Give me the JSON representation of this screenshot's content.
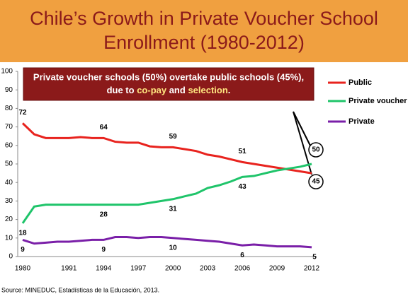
{
  "chart_data": {
    "type": "line",
    "title": [
      "Chile’s Growth in Private Voucher School",
      "Enrollment (1980-2012)"
    ],
    "annotation": {
      "line1": "Private voucher schools (50%) overtake public schools (45%),",
      "line2": [
        "due to ",
        "co-pay",
        " and ",
        "selection",
        "."
      ]
    },
    "source": "Source: MINEDUC,  Estadísticas de la Educación, 2013.",
    "categories": [
      "1980",
      null,
      null,
      null,
      "1991",
      null,
      null,
      "1994",
      null,
      null,
      "1997",
      null,
      null,
      "2000",
      null,
      null,
      "2003",
      null,
      null,
      "2006",
      null,
      null,
      "2009",
      null,
      null,
      "2012"
    ],
    "series": [
      {
        "name": "Public",
        "color": "#e8231e",
        "values": [
          72,
          66,
          64,
          64,
          64,
          64.5,
          64,
          64,
          62,
          61.5,
          61.5,
          59.5,
          59,
          59,
          58,
          57,
          55,
          54,
          52.5,
          51,
          50,
          49,
          48,
          47,
          46,
          45
        ]
      },
      {
        "name": "Private voucher",
        "color": "#1fc46a",
        "values": [
          18,
          27,
          28,
          28,
          28,
          28,
          28,
          28,
          28,
          28,
          28,
          29,
          30,
          31,
          32.5,
          34,
          37,
          38.5,
          40.5,
          43,
          43.5,
          45,
          46.5,
          47.5,
          48.5,
          50
        ]
      },
      {
        "name": "Private",
        "color": "#7a1fa8",
        "values": [
          9,
          7,
          7.5,
          8,
          8,
          8.5,
          9,
          9,
          10.5,
          10.5,
          10,
          10.5,
          10.5,
          10,
          9.5,
          9,
          8.5,
          8,
          7,
          6,
          6.5,
          6,
          5.5,
          5.5,
          5.5,
          5
        ]
      }
    ],
    "ylim": [
      0,
      100
    ],
    "yticks": [
      0,
      10,
      20,
      30,
      40,
      50,
      60,
      70,
      80,
      90,
      100
    ]
  }
}
